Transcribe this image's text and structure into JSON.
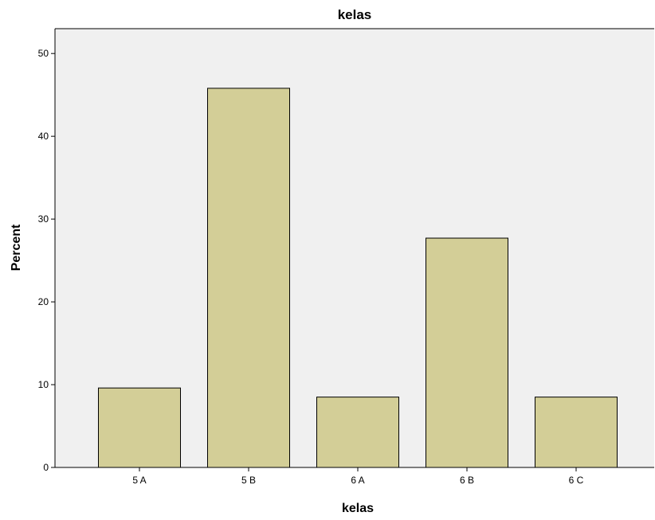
{
  "chart_data": {
    "type": "bar",
    "title": "kelas",
    "xlabel": "kelas",
    "ylabel": "Percent",
    "categories": [
      "5 A",
      "5 B",
      "6 A",
      "6 B",
      "6 C"
    ],
    "values": [
      9.6,
      45.8,
      8.5,
      27.7,
      8.5
    ],
    "ylim": [
      0,
      53
    ],
    "yticks": [
      0,
      10,
      20,
      30,
      40,
      50
    ],
    "ytick_labels": [
      "0",
      "10",
      "20",
      "30",
      "40",
      "50"
    ],
    "grid": false,
    "legend": "none",
    "colors": {
      "bar_fill": "#d3ce97",
      "plot_background": "#f0f0f0",
      "page_background": "#ffffff",
      "bar_stroke": "#000000"
    }
  }
}
